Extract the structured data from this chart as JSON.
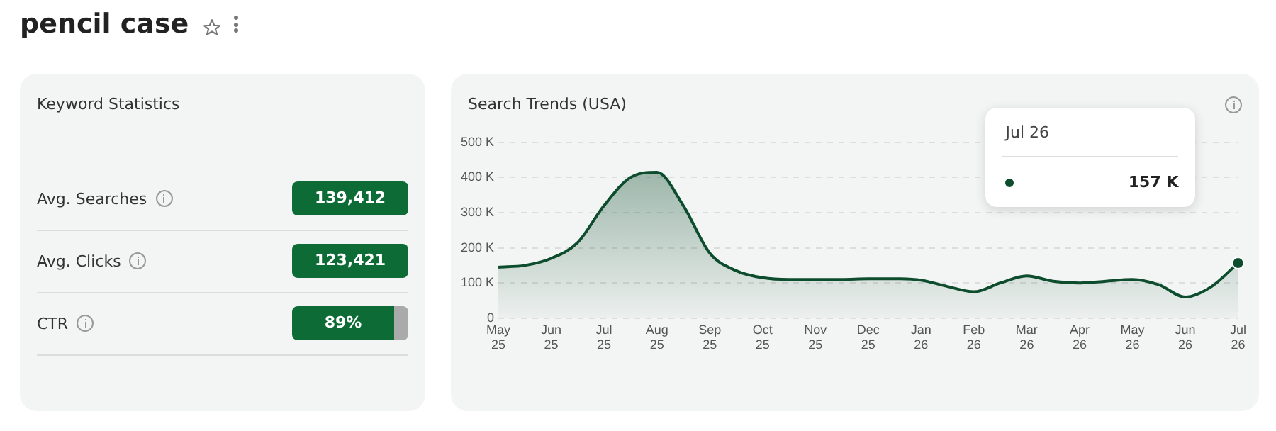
{
  "chart_data": [
    {
      "type": "other",
      "title": "pencil case",
      "subtitle": "Keyword Statistics",
      "annotations": [
        "Avg. Searches",
        "139,412",
        "Avg. Clicks",
        "123,421",
        "CTR",
        "89%"
      ]
    },
    {
      "type": "area",
      "title": "Search Trends (USA)",
      "categories": [
        "May 25",
        null,
        "Jun 25",
        null,
        "Jul 25",
        null,
        "Aug 25",
        null,
        "Sep 25",
        null,
        "Oct 25",
        null,
        "Nov 25",
        null,
        "Dec 25",
        null,
        "Jan 26",
        null,
        "Feb 26",
        null,
        "Mar 26",
        null,
        "Apr 26",
        null,
        "May 26",
        null,
        "Jun 26",
        null,
        "Jul 26"
      ],
      "series": [
        {
          "color": "#0d4d2e",
          "values": [
            145,
            150,
            170,
            215,
            320,
            400,
            415,
            320,
            185,
            135,
            115,
            110,
            110,
            110,
            112,
            112,
            108,
            90,
            75,
            100,
            120,
            105,
            100,
            105,
            110,
            95,
            60,
            90,
            157
          ]
        }
      ],
      "ylim": [
        0,
        500
      ],
      "yticks": [
        0,
        {
          "value": 100,
          "label": "100 K"
        },
        {
          "value": 200,
          "label": "200 K"
        },
        {
          "value": 300,
          "label": "300 K"
        },
        {
          "value": 400,
          "label": "400 K"
        },
        {
          "value": 500,
          "label": "500 K"
        }
      ],
      "grid": "y",
      "legend": false,
      "annotations": [
        "Jul 26",
        "157 K"
      ]
    }
  ]
}
